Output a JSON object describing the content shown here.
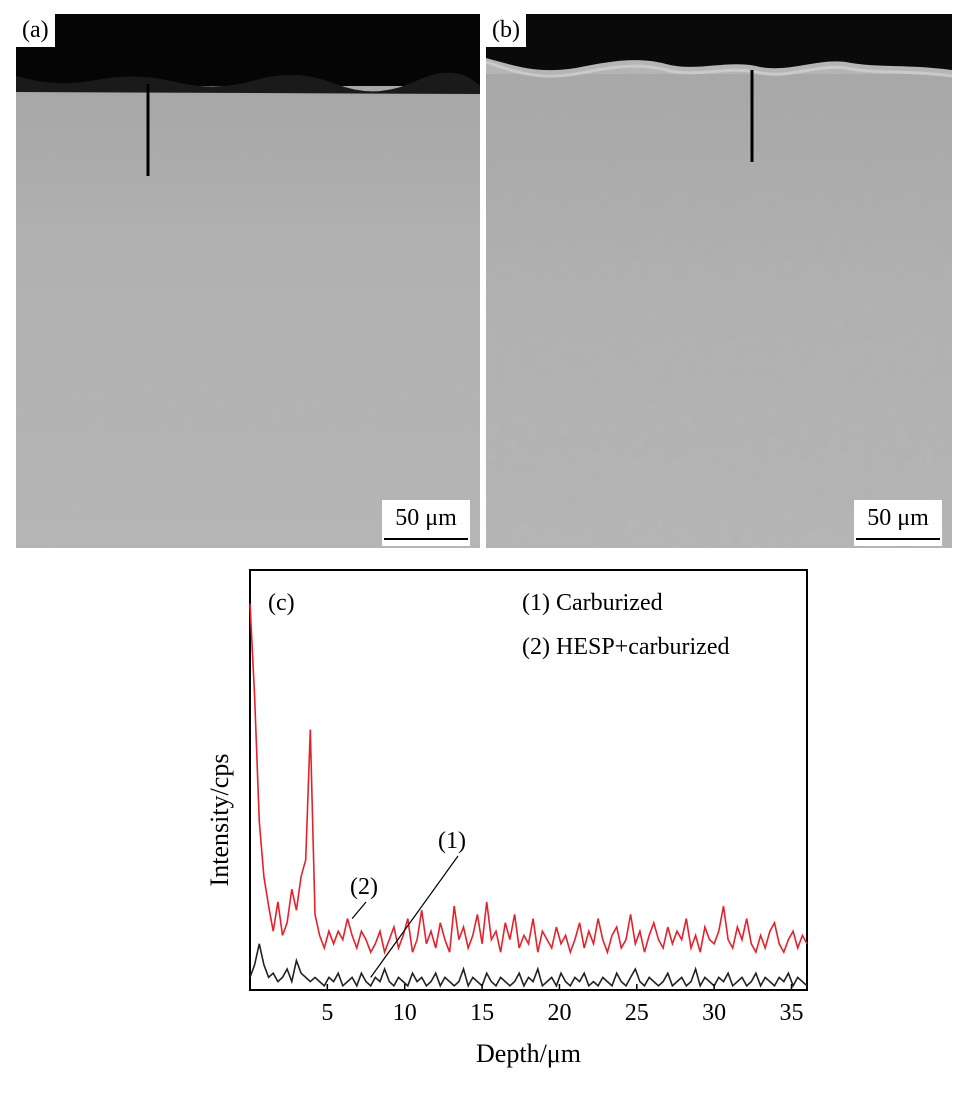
{
  "figure": {
    "panel_a": {
      "label": "(a)",
      "scale_bar": "50  μm"
    },
    "panel_b": {
      "label": "(b)",
      "scale_bar": "50  μm"
    },
    "panel_c": {
      "label": "(c)"
    }
  },
  "chart_data": {
    "type": "line",
    "panel_label": "(c)",
    "xlabel": "Depth/μm",
    "ylabel": "Intensity/cps",
    "xlim": [
      0,
      36
    ],
    "ylim": [
      0,
      100
    ],
    "x_ticks": [
      5,
      10,
      15,
      20,
      25,
      30,
      35
    ],
    "y_ticks_labeled": false,
    "legend": {
      "placement": "top-right",
      "entries": [
        "(1) Carburized",
        "(2) HESP+carburized"
      ]
    },
    "annotations": [
      {
        "text": "(1)",
        "points_to_series": "(1) Carburized",
        "at_x": 7.8
      },
      {
        "text": "(2)",
        "points_to_series": "(2) HESP+carburized",
        "at_x": 6.6
      }
    ],
    "series": [
      {
        "name": "(2) HESP+carburized",
        "color": "#e8202a",
        "x": [
          0,
          0.3,
          0.6,
          0.9,
          1.2,
          1.5,
          1.8,
          2.1,
          2.4,
          2.7,
          3.0,
          3.3,
          3.6,
          3.9,
          4.2,
          4.5,
          4.8,
          5.1,
          5.4,
          5.7,
          6.0,
          6.3,
          6.6,
          6.9,
          7.2,
          7.5,
          7.8,
          8.1,
          8.4,
          8.7,
          9.0,
          9.3,
          9.6,
          9.9,
          10.2,
          10.5,
          10.8,
          11.1,
          11.4,
          11.7,
          12.0,
          12.3,
          12.6,
          12.9,
          13.2,
          13.5,
          13.8,
          14.1,
          14.4,
          14.7,
          15.0,
          15.3,
          15.6,
          15.9,
          16.2,
          16.5,
          16.8,
          17.1,
          17.4,
          17.7,
          18.0,
          18.3,
          18.6,
          18.9,
          19.2,
          19.5,
          19.8,
          20.1,
          20.4,
          20.7,
          21.0,
          21.3,
          21.6,
          21.9,
          22.2,
          22.5,
          22.8,
          23.1,
          23.4,
          23.7,
          24.0,
          24.3,
          24.6,
          24.9,
          25.2,
          25.5,
          25.8,
          26.1,
          26.4,
          26.7,
          27.0,
          27.3,
          27.6,
          27.9,
          28.2,
          28.5,
          28.8,
          29.1,
          29.4,
          29.7,
          30.0,
          30.3,
          30.6,
          30.9,
          31.2,
          31.5,
          31.8,
          32.1,
          32.4,
          32.7,
          33.0,
          33.3,
          33.6,
          33.9,
          34.2,
          34.5,
          34.8,
          35.1,
          35.4,
          35.7,
          36.0
        ],
        "y": [
          92,
          70,
          40,
          27,
          20,
          14,
          21,
          13,
          16,
          24,
          19,
          27,
          31,
          62,
          18,
          13,
          10,
          14,
          11,
          14,
          12,
          17,
          13,
          10,
          14,
          12,
          9,
          11,
          14,
          9,
          12,
          15,
          10,
          13,
          17,
          9,
          12,
          19,
          11,
          14,
          10,
          16,
          12,
          9,
          20,
          12,
          15,
          10,
          13,
          18,
          11,
          21,
          12,
          14,
          9,
          16,
          12,
          18,
          10,
          13,
          11,
          17,
          9,
          14,
          12,
          10,
          15,
          11,
          13,
          9,
          12,
          16,
          10,
          14,
          11,
          17,
          12,
          9,
          13,
          15,
          10,
          12,
          18,
          11,
          14,
          9,
          13,
          16,
          12,
          10,
          15,
          11,
          14,
          12,
          17,
          10,
          13,
          9,
          15,
          12,
          11,
          14,
          20,
          12,
          10,
          15,
          12,
          17,
          11,
          9,
          13,
          10,
          14,
          16,
          11,
          9,
          12,
          14,
          10,
          13,
          11
        ]
      },
      {
        "name": "(1) Carburized",
        "color": "#222222",
        "x": [
          0,
          0.3,
          0.6,
          0.9,
          1.2,
          1.5,
          1.8,
          2.1,
          2.4,
          2.7,
          3.0,
          3.3,
          3.6,
          3.9,
          4.2,
          4.5,
          4.8,
          5.1,
          5.4,
          5.7,
          6.0,
          6.3,
          6.6,
          6.9,
          7.2,
          7.5,
          7.8,
          8.1,
          8.4,
          8.7,
          9.0,
          9.3,
          9.6,
          9.9,
          10.2,
          10.5,
          10.8,
          11.1,
          11.4,
          11.7,
          12.0,
          12.3,
          12.6,
          12.9,
          13.2,
          13.5,
          13.8,
          14.1,
          14.4,
          14.7,
          15.0,
          15.3,
          15.6,
          15.9,
          16.2,
          16.5,
          16.8,
          17.1,
          17.4,
          17.7,
          18.0,
          18.3,
          18.6,
          18.9,
          19.2,
          19.5,
          19.8,
          20.1,
          20.4,
          20.7,
          21.0,
          21.3,
          21.6,
          21.9,
          22.2,
          22.5,
          22.8,
          23.1,
          23.4,
          23.7,
          24.0,
          24.3,
          24.6,
          24.9,
          25.2,
          25.5,
          25.8,
          26.1,
          26.4,
          26.7,
          27.0,
          27.3,
          27.6,
          27.9,
          28.2,
          28.5,
          28.8,
          29.1,
          29.4,
          29.7,
          30.0,
          30.3,
          30.6,
          30.9,
          31.2,
          31.5,
          31.8,
          32.1,
          32.4,
          32.7,
          33.0,
          33.3,
          33.6,
          33.9,
          34.2,
          34.5,
          34.8,
          35.1,
          35.4,
          35.7,
          36.0
        ],
        "y": [
          3,
          6,
          11,
          6,
          3,
          4,
          2,
          3,
          5,
          2,
          7,
          4,
          3,
          2,
          3,
          2,
          1,
          3,
          2,
          4,
          1,
          2,
          3,
          1,
          4,
          2,
          1,
          3,
          2,
          5,
          2,
          1,
          3,
          2,
          1,
          4,
          2,
          3,
          1,
          2,
          4,
          1,
          3,
          2,
          1,
          2,
          5,
          1,
          3,
          2,
          1,
          4,
          2,
          1,
          3,
          2,
          1,
          2,
          4,
          1,
          3,
          2,
          5,
          1,
          2,
          3,
          1,
          4,
          2,
          1,
          3,
          2,
          4,
          1,
          2,
          1,
          3,
          2,
          1,
          4,
          2,
          1,
          3,
          5,
          2,
          1,
          3,
          2,
          1,
          2,
          4,
          1,
          2,
          3,
          1,
          2,
          5,
          1,
          3,
          2,
          1,
          3,
          2,
          4,
          1,
          2,
          3,
          1,
          2,
          4,
          1,
          3,
          2,
          1,
          3,
          2,
          4,
          1,
          3,
          2,
          1
        ]
      }
    ]
  }
}
